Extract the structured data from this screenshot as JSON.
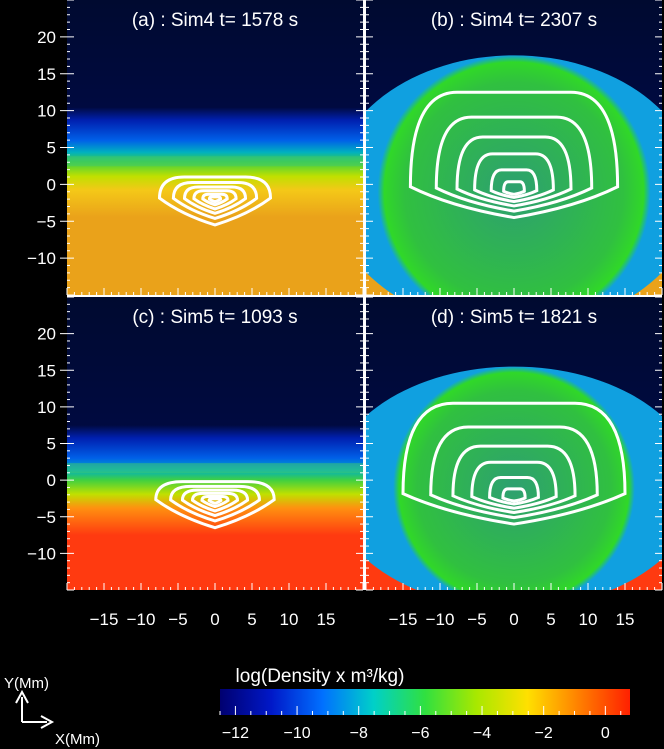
{
  "chart_data": [
    {
      "type": "heatmap",
      "panel_label": "(a) : Sim4 t= 1578 s",
      "atmosphere": {
        "transition_y": 3,
        "dense_color": "#eaa21a"
      },
      "bubble": {
        "top_y": 3,
        "half_width": 19
      },
      "contours": {
        "center_y": -2,
        "outer": {
          "top_y": 1,
          "bottom_y": -5.5,
          "half_width": 7.5
        }
      }
    },
    {
      "type": "heatmap",
      "panel_label": "(b) : Sim4 t= 2307 s",
      "atmosphere": {
        "transition_y": 3,
        "dense_color": "#eaa21a"
      },
      "bubble": {
        "top_y": 17.5,
        "half_width": 19
      },
      "contours": {
        "center_y": -1,
        "outer": {
          "top_y": 12.5,
          "bottom_y": -4.5,
          "half_width": 14
        }
      }
    },
    {
      "type": "heatmap",
      "panel_label": "(c) : Sim5 t= 1093 s",
      "atmosphere": {
        "transition_y": 0,
        "dense_color": "#ff3a10"
      },
      "bubble": {
        "top_y": 1.5,
        "half_width": 19
      },
      "contours": {
        "center_y": -2.8,
        "outer": {
          "top_y": -0.2,
          "bottom_y": -6.5,
          "half_width": 8
        }
      }
    },
    {
      "type": "heatmap",
      "panel_label": "(d) : Sim5 t= 1821 s",
      "atmosphere": {
        "transition_y": 0,
        "dense_color": "#ff3a10"
      },
      "bubble": {
        "top_y": 15.5,
        "half_width": 19
      },
      "contours": {
        "center_y": -2.5,
        "outer": {
          "top_y": 10.5,
          "bottom_y": -6,
          "half_width": 15
        }
      }
    }
  ],
  "axes": {
    "xlim": [
      -20,
      20
    ],
    "ylim": [
      -15,
      25
    ],
    "y_ticks": [
      "20",
      "15",
      "10",
      "5",
      "0",
      "−5",
      "−10"
    ],
    "x_ticks": [
      "−15",
      "−10",
      "−5",
      "0",
      "5",
      "10",
      "15"
    ]
  },
  "colorbar": {
    "label": "log(Density x m³/kg)",
    "ticks": [
      "−12",
      "−10",
      "−8",
      "−6",
      "−4",
      "−2",
      "0"
    ],
    "range": [
      -12.5,
      0.8
    ],
    "colors": [
      "#000070",
      "#0018c8",
      "#0070ff",
      "#00d0c8",
      "#30e040",
      "#a8e800",
      "#ffe000",
      "#ff8000",
      "#ff2000"
    ]
  },
  "orientation": {
    "y_label": "Y(Mm)",
    "x_label": "X(Mm)"
  }
}
